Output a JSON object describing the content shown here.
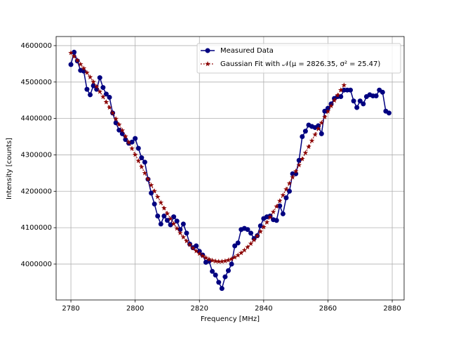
{
  "chart_data": {
    "type": "line",
    "xlabel": "Frequency [MHz]",
    "ylabel": "Intensity [counts]",
    "xlim": [
      2775.4,
      2883.7
    ],
    "ylim": [
      3901500,
      4625000
    ],
    "xticks": [
      2780,
      2800,
      2820,
      2840,
      2860,
      2880
    ],
    "yticks": [
      4000000,
      4100000,
      4200000,
      4300000,
      4400000,
      4500000,
      4600000
    ],
    "grid": true,
    "legend": "upper right",
    "series": [
      {
        "name": "Measured Data",
        "color": "#000080",
        "marker": "circle",
        "linestyle": "solid",
        "x": [
          2780,
          2781,
          2782,
          2783,
          2784,
          2785,
          2786,
          2787,
          2788,
          2789,
          2790,
          2791,
          2792,
          2793,
          2794,
          2795,
          2796,
          2797,
          2798,
          2799,
          2800,
          2801,
          2802,
          2803,
          2804,
          2805,
          2806,
          2807,
          2808,
          2809,
          2810,
          2811,
          2812,
          2813,
          2814,
          2815,
          2816,
          2817,
          2818,
          2819,
          2820,
          2821,
          2822,
          2823,
          2824,
          2825,
          2826,
          2827,
          2828,
          2829,
          2830,
          2831,
          2832,
          2833,
          2834,
          2835,
          2836,
          2837,
          2838,
          2839,
          2840,
          2841,
          2842,
          2843,
          2844,
          2845,
          2846,
          2847,
          2848,
          2849,
          2850,
          2851,
          2852,
          2853,
          2854,
          2855,
          2856,
          2857,
          2858,
          2859,
          2860,
          2861,
          2862,
          2863,
          2864,
          2865,
          2866,
          2867,
          2868,
          2869,
          2870,
          2871,
          2872,
          2873,
          2874,
          2875,
          2876,
          2877,
          2878,
          2879
        ],
        "values": [
          4548000,
          4582000,
          4558000,
          4532000,
          4530000,
          4480000,
          4465000,
          4490000,
          4480000,
          4512000,
          4485000,
          4467000,
          4458000,
          4415000,
          4388000,
          4368000,
          4358000,
          4342000,
          4332000,
          4335000,
          4345000,
          4318000,
          4292000,
          4280000,
          4233000,
          4195000,
          4165000,
          4132000,
          4110000,
          4132000,
          4120000,
          4108000,
          4130000,
          4118000,
          4095000,
          4110000,
          4085000,
          4055000,
          4045000,
          4050000,
          4035000,
          4025000,
          4005000,
          4008000,
          3980000,
          3970000,
          3950000,
          3933000,
          3965000,
          3982000,
          4000000,
          4050000,
          4058000,
          4095000,
          4098000,
          4095000,
          4085000,
          4070000,
          4078000,
          4105000,
          4125000,
          4130000,
          4132000,
          4122000,
          4120000,
          4160000,
          4138000,
          4182000,
          4200000,
          4248000,
          4248000,
          4285000,
          4350000,
          4365000,
          4382000,
          4378000,
          4375000,
          4380000,
          4358000,
          4420000,
          4428000,
          4440000,
          4455000,
          4460000,
          4460000,
          4478000,
          4478000,
          4478000,
          4448000,
          4430000,
          4448000,
          4440000,
          4460000,
          4465000,
          4462000,
          4462000,
          4478000,
          4472000,
          4420000,
          4415000
        ]
      },
      {
        "name": "Gaussian Fit with 𝒩(μ = 2826.35, σ² = 25.47)",
        "color": "#8b0000",
        "marker": "star",
        "linestyle": "dotted",
        "x": [
          2780,
          2781,
          2782,
          2783,
          2784,
          2785,
          2786,
          2787,
          2788,
          2789,
          2790,
          2791,
          2792,
          2793,
          2794,
          2795,
          2796,
          2797,
          2798,
          2799,
          2800,
          2801,
          2802,
          2803,
          2804,
          2805,
          2806,
          2807,
          2808,
          2809,
          2810,
          2811,
          2812,
          2813,
          2814,
          2815,
          2816,
          2817,
          2818,
          2819,
          2820,
          2821,
          2822,
          2823,
          2824,
          2825,
          2826,
          2827,
          2828,
          2829,
          2830,
          2831,
          2832,
          2833,
          2834,
          2835,
          2836,
          2837,
          2838,
          2839,
          2840,
          2841,
          2842,
          2843,
          2844,
          2845,
          2846,
          2847,
          2848,
          2849,
          2850,
          2851,
          2852,
          2853,
          2854,
          2855,
          2856,
          2857,
          2858,
          2859,
          2860,
          2861,
          2862,
          2863,
          2864,
          2865
        ],
        "values": [
          4580100,
          4570200,
          4559800,
          4548900,
          4537500,
          4525700,
          4513400,
          4500500,
          4487300,
          4473600,
          4459500,
          4444900,
          4430000,
          4414800,
          4399100,
          4383200,
          4367100,
          4350700,
          4334100,
          4317400,
          4300500,
          4283700,
          4266800,
          4250000,
          4233300,
          4216800,
          4200500,
          4184600,
          4168900,
          4153600,
          4138800,
          4124600,
          4110900,
          4097900,
          4085500,
          4073900,
          4063200,
          4053200,
          4044000,
          4035800,
          4028700,
          4022400,
          4017300,
          4013200,
          4010000,
          4008000,
          4007100,
          4007200,
          4008500,
          4010800,
          4014200,
          4018700,
          4024200,
          4030700,
          4038200,
          4046700,
          4056100,
          4066300,
          4077300,
          4089200,
          4101800,
          4114900,
          4128800,
          4143300,
          4158200,
          4173500,
          4189300,
          4205400,
          4221800,
          4238300,
          4255000,
          4271800,
          4288700,
          4305500,
          4322400,
          4339000,
          4355600,
          4371900,
          4388000,
          4403900,
          4419400,
          4434500,
          4449400,
          4463800,
          4477800,
          4491300
        ]
      }
    ]
  }
}
